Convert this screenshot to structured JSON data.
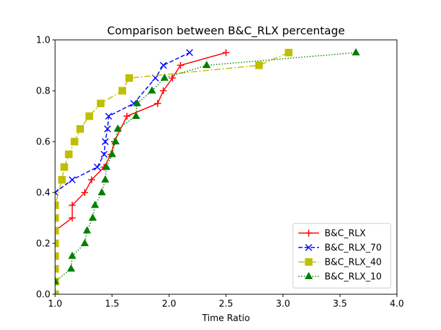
{
  "chart_data": {
    "type": "line",
    "title": "Comparison between B&C_RLX percentage",
    "xlabel": "Time Ratio",
    "ylabel": "",
    "xlim": [
      1.0,
      4.0
    ],
    "ylim": [
      0.0,
      1.0
    ],
    "x_ticks": [
      "1.0",
      "1.5",
      "2.0",
      "2.5",
      "3.0",
      "3.5",
      "4.0"
    ],
    "y_ticks": [
      "0.0",
      "0.2",
      "0.4",
      "0.6",
      "0.8",
      "1.0"
    ],
    "grid": false,
    "legend_position": "lower-right",
    "series": [
      {
        "name": "B&C_RLX",
        "color": "#ff0000",
        "linestyle": "solid",
        "marker": "plus",
        "x": [
          1.0,
          1.0,
          1.15,
          1.15,
          1.26,
          1.32,
          1.43,
          1.49,
          1.52,
          1.63,
          1.9,
          1.95,
          2.03,
          2.1,
          2.5
        ],
        "y": [
          0.2,
          0.25,
          0.3,
          0.35,
          0.4,
          0.45,
          0.5,
          0.55,
          0.6,
          0.7,
          0.75,
          0.8,
          0.85,
          0.9,
          0.95
        ]
      },
      {
        "name": "B&C_RLX_70",
        "color": "#0000ff",
        "linestyle": "dashed",
        "marker": "x",
        "x": [
          1.0,
          1.15,
          1.37,
          1.43,
          1.44,
          1.46,
          1.47,
          1.69,
          1.88,
          1.95,
          2.18
        ],
        "y": [
          0.4,
          0.45,
          0.5,
          0.55,
          0.6,
          0.65,
          0.7,
          0.75,
          0.85,
          0.9,
          0.95
        ]
      },
      {
        "name": "B&C_RLX_40",
        "color": "#bfbf00",
        "linestyle": "dashdot",
        "marker": "square",
        "x": [
          1.0,
          1.0,
          1.0,
          1.0,
          1.0,
          1.0,
          1.0,
          1.0,
          1.06,
          1.08,
          1.12,
          1.17,
          1.22,
          1.3,
          1.4,
          1.59,
          1.65,
          2.79,
          3.05
        ],
        "y": [
          0.0,
          0.05,
          0.1,
          0.15,
          0.2,
          0.25,
          0.3,
          0.35,
          0.45,
          0.5,
          0.55,
          0.6,
          0.65,
          0.7,
          0.75,
          0.8,
          0.85,
          0.9,
          0.95
        ]
      },
      {
        "name": "B&C_RLX_10",
        "color": "#008000",
        "linestyle": "dotted",
        "marker": "triangle",
        "x": [
          1.0,
          1.14,
          1.15,
          1.26,
          1.28,
          1.33,
          1.35,
          1.41,
          1.44,
          1.45,
          1.5,
          1.53,
          1.55,
          1.71,
          1.72,
          1.85,
          1.96,
          2.33,
          3.64
        ],
        "y": [
          0.05,
          0.1,
          0.15,
          0.2,
          0.25,
          0.3,
          0.35,
          0.4,
          0.45,
          0.5,
          0.55,
          0.6,
          0.65,
          0.7,
          0.75,
          0.8,
          0.85,
          0.9,
          0.95
        ]
      }
    ]
  }
}
